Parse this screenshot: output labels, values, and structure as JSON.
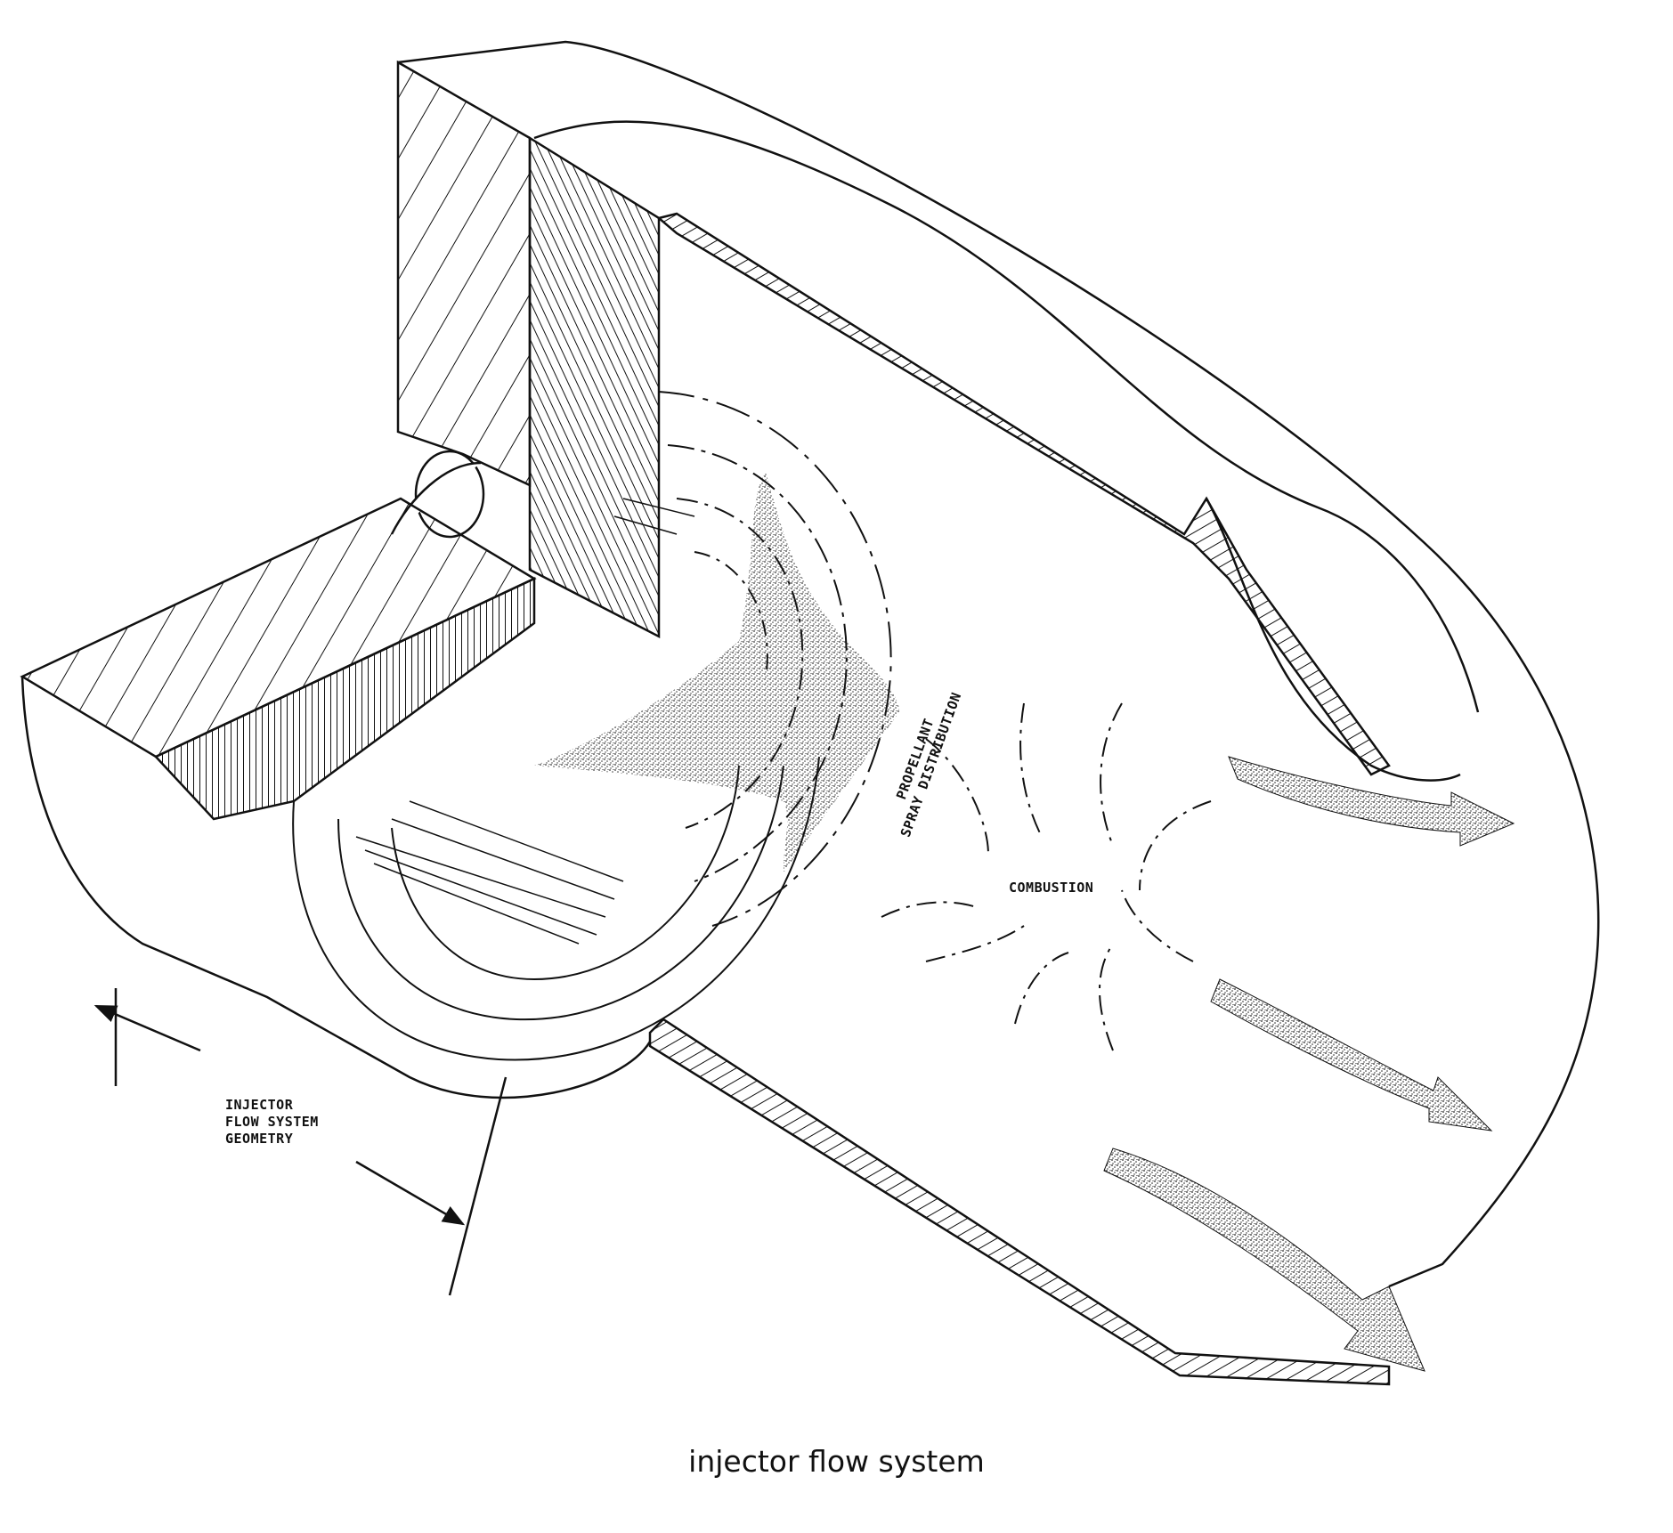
{
  "labels": {
    "injector_geometry_line1": "INJECTOR",
    "injector_geometry_line2": "FLOW SYSTEM",
    "injector_geometry_line3": "GEOMETRY",
    "propellant_line1": "PROPELLANT",
    "propellant_line2": "SPRAY DISTRIBUTION",
    "combustion": "COMBUSTION"
  },
  "caption": "injector flow system",
  "colors": {
    "ink": "#111111",
    "paper": "#ffffff"
  }
}
